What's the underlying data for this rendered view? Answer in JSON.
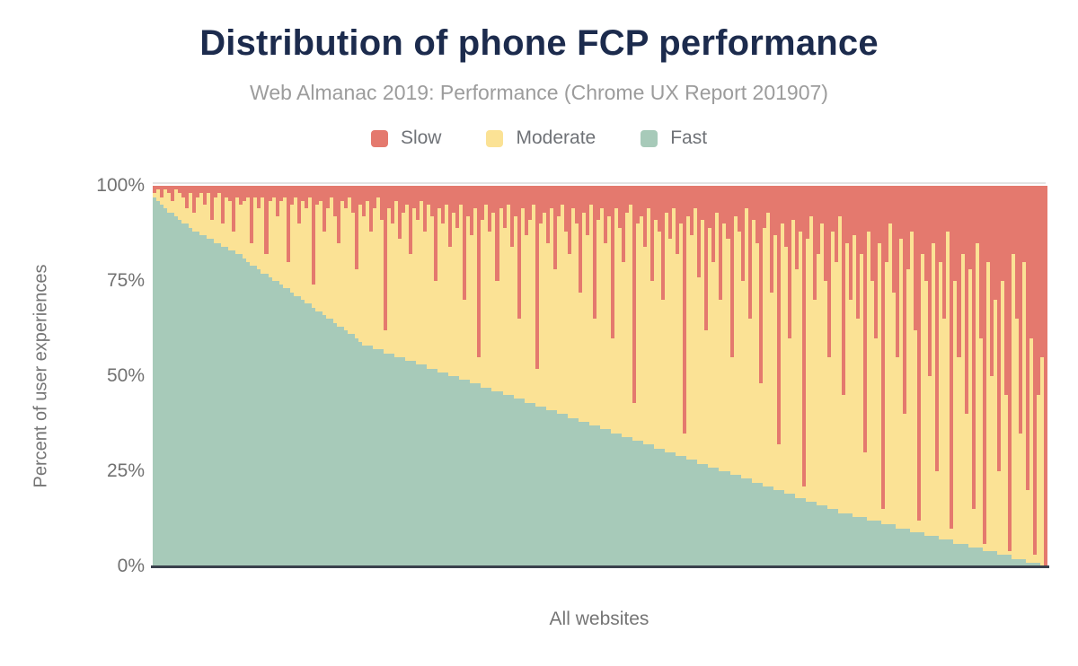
{
  "page": {
    "background": "#ffffff"
  },
  "header": {
    "title": "Distribution of phone FCP performance",
    "subtitle": "Web Almanac 2019: Performance (Chrome UX Report 201907)"
  },
  "axes": {
    "y_title": "Percent of user experiences",
    "y_ticks": [
      "100%",
      "75%",
      "50%",
      "25%",
      "0%"
    ],
    "x_label": "All websites",
    "axis_line_color": "#3A414C",
    "gridline_color": "#E3E3E3",
    "label_color": "#757575"
  },
  "palette": {
    "title_color": "#1C2B4D",
    "subtitle_color": "#9C9C9C",
    "slow": "#E4796E",
    "moderate": "#FBE295",
    "fast": "#A7CAB9"
  },
  "chart_data": {
    "type": "bar",
    "stacked": true,
    "title": "Distribution of phone FCP performance",
    "subtitle": "Web Almanac 2019: Performance (Chrome UX Report 201907)",
    "xlabel": "All websites",
    "ylabel": "Percent of user experiences",
    "ylim": [
      0,
      100
    ],
    "grid": "top 100% line only",
    "legend_position": "top center",
    "n_bars": 248,
    "x_description": "Individual websites sorted by decreasing share of fast FCP experiences; each bar sums to 100%",
    "series": [
      {
        "name": "Slow",
        "color": "#E4796E",
        "values": [
          2,
          1,
          3,
          1,
          2,
          4,
          1,
          2,
          3,
          6,
          2,
          7,
          3,
          2,
          5,
          2,
          9,
          3,
          2,
          10,
          3,
          4,
          12,
          3,
          5,
          4,
          3,
          15,
          3,
          6,
          3,
          18,
          4,
          3,
          8,
          4,
          3,
          20,
          5,
          3,
          10,
          4,
          6,
          3,
          26,
          5,
          4,
          12,
          6,
          3,
          8,
          15,
          4,
          6,
          3,
          7,
          22,
          5,
          8,
          4,
          12,
          6,
          3,
          9,
          38,
          6,
          10,
          4,
          14,
          7,
          5,
          18,
          6,
          9,
          4,
          12,
          5,
          8,
          25,
          6,
          10,
          5,
          16,
          7,
          11,
          5,
          30,
          8,
          13,
          6,
          45,
          9,
          5,
          12,
          7,
          25,
          6,
          11,
          5,
          16,
          8,
          35,
          6,
          13,
          9,
          5,
          48,
          10,
          7,
          15,
          6,
          22,
          8,
          5,
          12,
          18,
          6,
          10,
          28,
          7,
          13,
          5,
          35,
          9,
          6,
          15,
          8,
          40,
          6,
          11,
          20,
          7,
          5,
          57,
          10,
          8,
          16,
          6,
          25,
          9,
          12,
          30,
          7,
          14,
          6,
          18,
          10,
          65,
          8,
          13,
          6,
          24,
          9,
          38,
          11,
          20,
          7,
          30,
          10,
          14,
          45,
          8,
          12,
          25,
          6,
          35,
          9,
          15,
          52,
          11,
          7,
          28,
          13,
          68,
          10,
          16,
          40,
          9,
          22,
          12,
          79,
          14,
          8,
          30,
          18,
          10,
          25,
          45,
          12,
          20,
          8,
          55,
          15,
          30,
          13,
          35,
          18,
          70,
          12,
          25,
          40,
          15,
          85,
          20,
          10,
          28,
          45,
          14,
          60,
          22,
          12,
          38,
          88,
          18,
          25,
          50,
          15,
          75,
          20,
          35,
          12,
          90,
          25,
          45,
          18,
          60,
          22,
          85,
          15,
          40,
          94,
          20,
          50,
          30,
          75,
          25,
          55,
          96,
          18,
          35,
          65,
          20,
          80,
          40,
          97,
          55,
          45,
          100
        ]
      },
      {
        "name": "Moderate",
        "color": "#FBE295",
        "derived_from": "100 - slow - fast (remainder of each stacked bar)"
      },
      {
        "name": "Fast",
        "color": "#A7CAB9",
        "values": [
          97,
          96,
          95,
          94,
          93,
          93,
          92,
          91,
          90,
          90,
          89,
          88,
          88,
          87,
          87,
          86,
          86,
          85,
          85,
          84,
          84,
          83,
          83,
          82,
          82,
          81,
          80,
          79,
          79,
          78,
          77,
          77,
          76,
          75,
          75,
          74,
          73,
          73,
          72,
          71,
          71,
          70,
          69,
          69,
          68,
          67,
          67,
          66,
          65,
          65,
          64,
          63,
          63,
          62,
          61,
          61,
          60,
          59,
          58,
          58,
          58,
          57,
          57,
          57,
          56,
          56,
          56,
          55,
          55,
          55,
          54,
          54,
          54,
          53,
          53,
          53,
          52,
          52,
          52,
          51,
          51,
          51,
          50,
          50,
          50,
          49,
          49,
          49,
          48,
          48,
          48,
          47,
          47,
          47,
          46,
          46,
          46,
          45,
          45,
          45,
          44,
          44,
          44,
          43,
          43,
          43,
          42,
          42,
          42,
          41,
          41,
          41,
          40,
          40,
          40,
          39,
          39,
          39,
          38,
          38,
          38,
          37,
          37,
          37,
          36,
          36,
          36,
          35,
          35,
          35,
          34,
          34,
          34,
          33,
          33,
          33,
          32,
          32,
          32,
          31,
          31,
          31,
          30,
          30,
          30,
          29,
          29,
          29,
          28,
          28,
          28,
          27,
          27,
          27,
          26,
          26,
          26,
          25,
          25,
          25,
          24,
          24,
          24,
          23,
          23,
          23,
          22,
          22,
          22,
          21,
          21,
          21,
          20,
          20,
          20,
          19,
          19,
          19,
          18,
          18,
          18,
          17,
          17,
          17,
          16,
          16,
          16,
          15,
          15,
          15,
          14,
          14,
          14,
          14,
          13,
          13,
          13,
          13,
          12,
          12,
          12,
          12,
          11,
          11,
          11,
          11,
          10,
          10,
          10,
          10,
          9,
          9,
          9,
          9,
          8,
          8,
          8,
          8,
          7,
          7,
          7,
          7,
          6,
          6,
          6,
          6,
          5,
          5,
          5,
          5,
          4,
          4,
          4,
          4,
          3,
          3,
          3,
          3,
          2,
          2,
          2,
          2,
          1,
          1,
          1,
          1,
          0,
          0
        ]
      }
    ]
  }
}
